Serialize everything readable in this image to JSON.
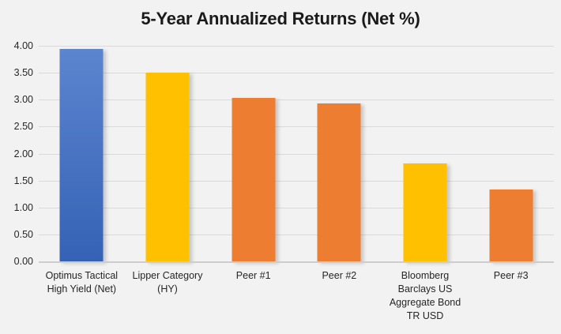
{
  "chart_data": {
    "type": "bar",
    "title": "5-Year Annualized Returns (Net %)",
    "categories": [
      "Optimus Tactical High Yield (Net)",
      "Lipper Category (HY)",
      "Peer #1",
      "Peer #2",
      "Bloomberg Barclays US Aggregate Bond TR USD",
      "Peer #3"
    ],
    "values": [
      3.95,
      3.52,
      3.05,
      2.95,
      1.83,
      1.35
    ],
    "bar_fills": [
      {
        "type": "gradient",
        "from": "#5c85cf",
        "to": "#3562b5"
      },
      {
        "type": "solid",
        "color": "#ffc000"
      },
      {
        "type": "solid",
        "color": "#ed7d31"
      },
      {
        "type": "solid",
        "color": "#ed7d31"
      },
      {
        "type": "solid",
        "color": "#ffc000"
      },
      {
        "type": "solid",
        "color": "#ed7d31"
      }
    ],
    "xlabel": "",
    "ylabel": "",
    "ylim": [
      0,
      4
    ],
    "ytick_step": 0.5,
    "ytick_labels": [
      "0.00",
      "0.50",
      "1.00",
      "1.50",
      "2.00",
      "2.50",
      "3.00",
      "3.50",
      "4.00"
    ],
    "grid": true,
    "legend": false,
    "colors": {
      "background": "#f2f2f2",
      "gridline": "#d9d9d9",
      "axis_line": "#cfcccc",
      "tick_text": "#262626",
      "title_text": "#1a1a1a"
    }
  }
}
